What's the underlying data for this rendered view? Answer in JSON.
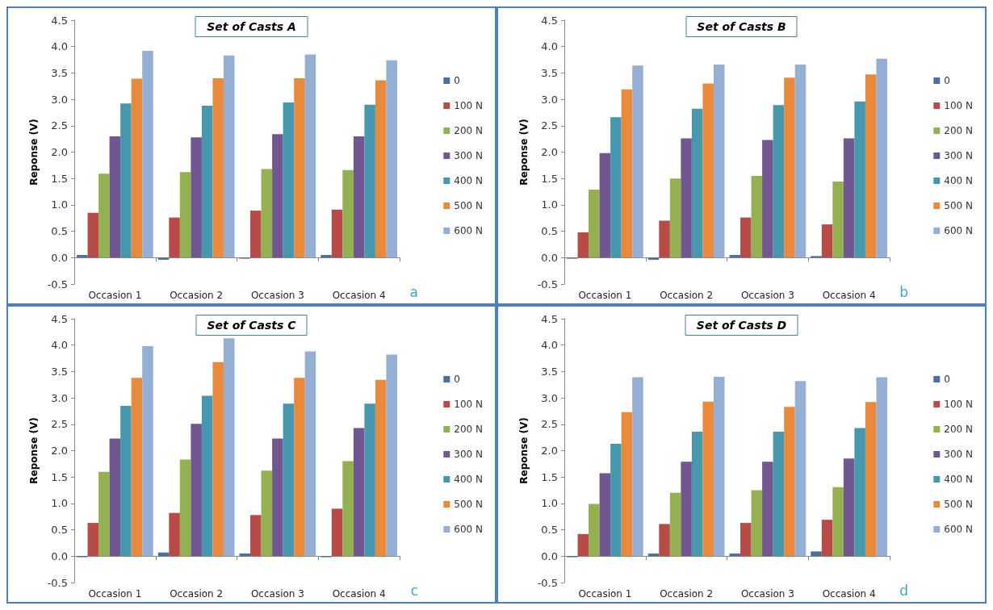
{
  "chart_data": [
    {
      "type": "bar",
      "title": "Set of Casts A",
      "ylabel": "Reponse (V)",
      "categories": [
        "Occasion 1",
        "Occasion 2",
        "Occasion 3",
        "Occasion 4"
      ],
      "ylim": [
        -0.5,
        4.5
      ],
      "yticks": [
        {
          "value": -0.5,
          "label": "-0.5"
        },
        {
          "value": 0,
          "label": "0.0"
        },
        {
          "value": 0.5,
          "label": "0.5"
        },
        {
          "value": 1,
          "label": "1.0"
        },
        {
          "value": 1.5,
          "label": "1.5"
        },
        {
          "value": 2,
          "label": "2.0"
        },
        {
          "value": 2.5,
          "label": "2.5"
        },
        {
          "value": 3,
          "label": "3.0"
        },
        {
          "value": 3.5,
          "label": "3.5"
        },
        {
          "value": 4,
          "label": "4.0"
        },
        {
          "value": 4.5,
          "label": "4.5"
        }
      ],
      "legend": "right",
      "annotations": [
        "a"
      ],
      "series": [
        {
          "name": "0",
          "color": "#4a6fa0",
          "values": [
            0.05,
            -0.04,
            -0.02,
            0.05
          ]
        },
        {
          "name": "100 N",
          "color": "#b84a47",
          "values": [
            0.85,
            0.76,
            0.89,
            0.91
          ]
        },
        {
          "name": "200 N",
          "color": "#93b150",
          "values": [
            1.59,
            1.62,
            1.68,
            1.66
          ]
        },
        {
          "name": "300 N",
          "color": "#71578f",
          "values": [
            2.3,
            2.28,
            2.34,
            2.3
          ]
        },
        {
          "name": "400 N",
          "color": "#4598ad",
          "values": [
            2.92,
            2.88,
            2.94,
            2.9
          ]
        },
        {
          "name": "500 N",
          "color": "#e9893b",
          "values": [
            3.39,
            3.4,
            3.4,
            3.36
          ]
        },
        {
          "name": "600 N",
          "color": "#95aed4",
          "values": [
            3.92,
            3.83,
            3.85,
            3.74
          ]
        }
      ]
    },
    {
      "type": "bar",
      "title": "Set of Casts B",
      "ylabel": "Reponse (V)",
      "categories": [
        "Occasion 1",
        "Occasion 2",
        "Occasion 3",
        "Occasion 4"
      ],
      "ylim": [
        -0.5,
        4.5
      ],
      "yticks": [
        {
          "value": -0.5,
          "label": "-0.5"
        },
        {
          "value": 0,
          "label": "0.0"
        },
        {
          "value": 0.5,
          "label": "0.5"
        },
        {
          "value": 1,
          "label": "1.0"
        },
        {
          "value": 1.5,
          "label": "1.5"
        },
        {
          "value": 2,
          "label": "2.0"
        },
        {
          "value": 2.5,
          "label": "2.5"
        },
        {
          "value": 3,
          "label": "3.0"
        },
        {
          "value": 3.5,
          "label": "3.5"
        },
        {
          "value": 4,
          "label": "4.0"
        },
        {
          "value": 4.5,
          "label": "4.5"
        }
      ],
      "legend": "right",
      "annotations": [
        "b"
      ],
      "series": [
        {
          "name": "0",
          "color": "#4a6fa0",
          "values": [
            -0.02,
            -0.04,
            0.05,
            0.03
          ]
        },
        {
          "name": "100 N",
          "color": "#b84a47",
          "values": [
            0.48,
            0.7,
            0.76,
            0.63
          ]
        },
        {
          "name": "200 N",
          "color": "#93b150",
          "values": [
            1.29,
            1.5,
            1.55,
            1.44
          ]
        },
        {
          "name": "300 N",
          "color": "#71578f",
          "values": [
            1.98,
            2.26,
            2.23,
            2.26
          ]
        },
        {
          "name": "400 N",
          "color": "#4598ad",
          "values": [
            2.66,
            2.82,
            2.89,
            2.96
          ]
        },
        {
          "name": "500 N",
          "color": "#e9893b",
          "values": [
            3.19,
            3.3,
            3.41,
            3.47
          ]
        },
        {
          "name": "600 N",
          "color": "#95aed4",
          "values": [
            3.64,
            3.66,
            3.66,
            3.77
          ]
        }
      ]
    },
    {
      "type": "bar",
      "title": "Set of Casts C",
      "ylabel": "Reponse (V)",
      "categories": [
        "Occasion 1",
        "Occasion 2",
        "Occasion 3",
        "Occasion 4"
      ],
      "ylim": [
        -0.5,
        4.5
      ],
      "yticks": [
        {
          "value": -0.5,
          "label": "-0.5"
        },
        {
          "value": 0,
          "label": "0.0"
        },
        {
          "value": 0.5,
          "label": "0.5"
        },
        {
          "value": 1,
          "label": "1.0"
        },
        {
          "value": 1.5,
          "label": "1.5"
        },
        {
          "value": 2,
          "label": "2.0"
        },
        {
          "value": 2.5,
          "label": "2.5"
        },
        {
          "value": 3,
          "label": "3.0"
        },
        {
          "value": 3.5,
          "label": "3.5"
        },
        {
          "value": 4,
          "label": "4.0"
        },
        {
          "value": 4.5,
          "label": "4.5"
        }
      ],
      "legend": "right",
      "annotations": [
        "c"
      ],
      "series": [
        {
          "name": "0",
          "color": "#4a6fa0",
          "values": [
            -0.02,
            0.07,
            0.05,
            -0.02
          ]
        },
        {
          "name": "100 N",
          "color": "#b84a47",
          "values": [
            0.63,
            0.82,
            0.78,
            0.9
          ]
        },
        {
          "name": "200 N",
          "color": "#93b150",
          "values": [
            1.6,
            1.83,
            1.62,
            1.8
          ]
        },
        {
          "name": "300 N",
          "color": "#71578f",
          "values": [
            2.23,
            2.51,
            2.23,
            2.43
          ]
        },
        {
          "name": "400 N",
          "color": "#4598ad",
          "values": [
            2.85,
            3.04,
            2.89,
            2.89
          ]
        },
        {
          "name": "500 N",
          "color": "#e9893b",
          "values": [
            3.38,
            3.68,
            3.38,
            3.34
          ]
        },
        {
          "name": "600 N",
          "color": "#95aed4",
          "values": [
            3.98,
            4.13,
            3.88,
            3.82
          ]
        }
      ]
    },
    {
      "type": "bar",
      "title": "Set of Casts D",
      "ylabel": "Reponse (V)",
      "categories": [
        "Occasion 1",
        "Occasion 2",
        "Occasion 3",
        "Occasion 4"
      ],
      "ylim": [
        -0.5,
        4.5
      ],
      "yticks": [
        {
          "value": -0.5,
          "label": "-0.5"
        },
        {
          "value": 0,
          "label": "0.0"
        },
        {
          "value": 0.5,
          "label": "0.5"
        },
        {
          "value": 1,
          "label": "1.0"
        },
        {
          "value": 1.5,
          "label": "1.5"
        },
        {
          "value": 2,
          "label": "2.0"
        },
        {
          "value": 2.5,
          "label": "2.5"
        },
        {
          "value": 3,
          "label": "3.0"
        },
        {
          "value": 3.5,
          "label": "3.5"
        },
        {
          "value": 4,
          "label": "4.0"
        },
        {
          "value": 4.5,
          "label": "4.5"
        }
      ],
      "legend": "right",
      "annotations": [
        "d"
      ],
      "series": [
        {
          "name": "0",
          "color": "#4a6fa0",
          "values": [
            -0.02,
            0.05,
            0.05,
            0.09
          ]
        },
        {
          "name": "100 N",
          "color": "#b84a47",
          "values": [
            0.42,
            0.61,
            0.63,
            0.69
          ]
        },
        {
          "name": "200 N",
          "color": "#93b150",
          "values": [
            0.99,
            1.2,
            1.25,
            1.31
          ]
        },
        {
          "name": "300 N",
          "color": "#71578f",
          "values": [
            1.57,
            1.79,
            1.79,
            1.85
          ]
        },
        {
          "name": "400 N",
          "color": "#4598ad",
          "values": [
            2.13,
            2.36,
            2.36,
            2.43
          ]
        },
        {
          "name": "500 N",
          "color": "#e9893b",
          "values": [
            2.73,
            2.93,
            2.83,
            2.92
          ]
        },
        {
          "name": "600 N",
          "color": "#95aed4",
          "values": [
            3.39,
            3.4,
            3.32,
            3.39
          ]
        }
      ]
    }
  ]
}
